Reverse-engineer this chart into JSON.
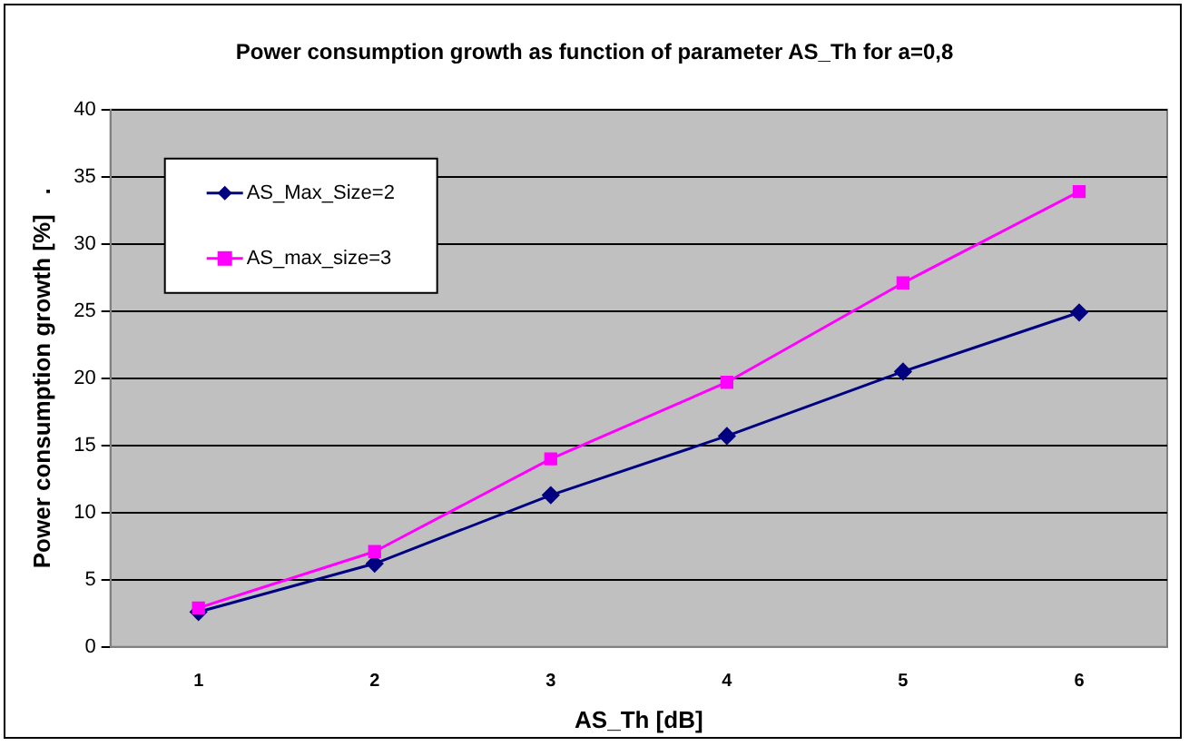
{
  "chart_data": {
    "type": "line",
    "title": "Power consumption growth as function of parameter AS_Th for a=0,8",
    "xlabel": "AS_Th [dB]",
    "ylabel": "Power consumption growth [%]   .",
    "categories": [
      "1",
      "2",
      "3",
      "4",
      "5",
      "6"
    ],
    "series": [
      {
        "name": "AS_Max_Size=2",
        "color": "#000080",
        "marker": "diamond",
        "values": [
          2.6,
          6.2,
          11.3,
          15.7,
          20.5,
          24.9
        ]
      },
      {
        "name": "AS_max_size=3",
        "color": "#ff00ff",
        "marker": "square",
        "values": [
          2.9,
          7.1,
          14.0,
          19.7,
          27.1,
          33.9
        ]
      }
    ],
    "ylim": [
      0,
      40
    ],
    "yticks": [
      0,
      5,
      10,
      15,
      20,
      25,
      30,
      35,
      40
    ],
    "grid": "y",
    "legend": "top left",
    "line_style": "solid"
  }
}
